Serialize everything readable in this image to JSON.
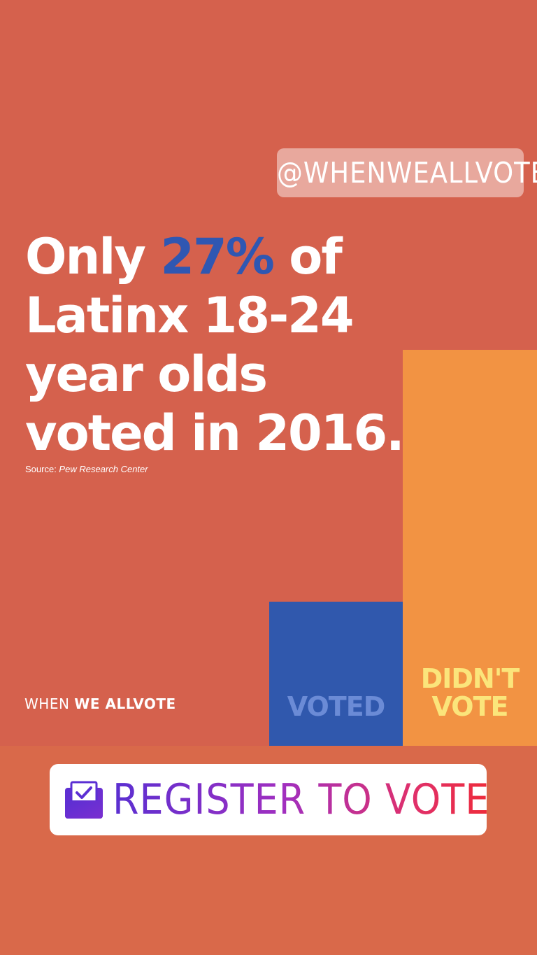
{
  "sticker_handle": {
    "text": "@WHENWEALLVOTE"
  },
  "headline": {
    "line1_pre": "Only ",
    "line1_pct": "27%",
    "line1_post": " of",
    "line2": "Latinx 18-24",
    "line3": "year olds",
    "line4": "voted in 2016."
  },
  "source": {
    "prefix": "Source: ",
    "name": "Pew Research Center"
  },
  "brand": {
    "part1": "WHEN ",
    "part2": "WE ALL",
    "part3": "VOTE"
  },
  "chart_data": {
    "type": "bar",
    "categories": [
      "VOTED",
      "DIDN'T VOTE"
    ],
    "values": [
      27,
      73
    ],
    "didnt_line1": "DIDN'T",
    "didnt_line2": "VOTE"
  },
  "register_sticker": {
    "text": "REGISTER TO VOTE",
    "icon": "ballot-box-icon"
  },
  "colors": {
    "background": "#d5614d",
    "voted_bar": "#3058ad",
    "didnt_vote_bar": "#f29343",
    "highlight": "#2f57b2"
  }
}
